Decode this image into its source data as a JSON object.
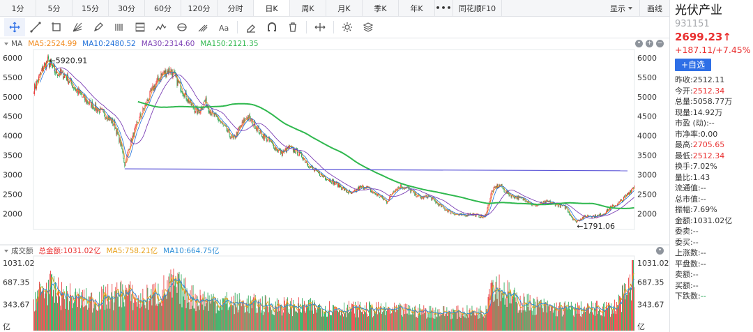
{
  "period_tabs": [
    {
      "label": "1分",
      "active": false
    },
    {
      "label": "5分",
      "active": false
    },
    {
      "label": "15分",
      "active": false
    },
    {
      "label": "30分",
      "active": false
    },
    {
      "label": "60分",
      "active": false
    },
    {
      "label": "120分",
      "active": false
    },
    {
      "label": "分时",
      "active": false
    },
    {
      "label": "日K",
      "active": true
    },
    {
      "label": "周K",
      "active": false
    },
    {
      "label": "月K",
      "active": false
    },
    {
      "label": "季K",
      "active": false
    },
    {
      "label": "年K",
      "active": false
    }
  ],
  "more_label": "•••",
  "f10_label": "同花顺F10",
  "display_label": "显示",
  "draw_label": "画线",
  "tools": [
    "crosshair-icon",
    "line-segment-icon",
    "rectangle-icon",
    "fan-icon",
    "pen-icon",
    "bars-icon",
    "channel-icon",
    "wave-icon",
    "cycle-icon",
    "fork-icon",
    "text-icon",
    "eraser-icon",
    "magnet-icon",
    "trash-icon",
    "arrows-icon",
    "settings-icon",
    "layers-icon"
  ],
  "colors": {
    "up": "#e93030",
    "down": "#1aa14b",
    "ma5": "#f28b1e",
    "ma10": "#1e6fd9",
    "ma30": "#7b3fb5",
    "ma150": "#2fb84e",
    "hline": "#5b55d8",
    "vol_ma5": "#e7a11b",
    "vol_ma10": "#2e8fd8"
  },
  "main_legend": {
    "tag": "MA",
    "ma5": "MA5:2524.99",
    "ma10": "MA10:2480.52",
    "ma30": "MA30:2314.60",
    "ma150": "MA150:2121.35"
  },
  "vol_legend": {
    "tag": "成交额",
    "total": "总金额:1031.02亿",
    "ma5": "MA5:758.21亿",
    "ma10": "MA10:664.75亿"
  },
  "chart_data": [
    {
      "type": "line",
      "ylim": [
        1700,
        6000
      ],
      "yticks": [
        2000,
        2500,
        3000,
        3500,
        4000,
        4500,
        5000,
        5500,
        6000
      ],
      "price_path": [
        [
          0,
          5200
        ],
        [
          8,
          5500
        ],
        [
          14,
          5780
        ],
        [
          20,
          5920
        ],
        [
          30,
          5650
        ],
        [
          45,
          5550
        ],
        [
          60,
          5200
        ],
        [
          75,
          4900
        ],
        [
          90,
          4700
        ],
        [
          105,
          4500
        ],
        [
          115,
          4300
        ],
        [
          125,
          3750
        ],
        [
          130,
          3250
        ],
        [
          138,
          3800
        ],
        [
          150,
          4400
        ],
        [
          160,
          4800
        ],
        [
          170,
          5200
        ],
        [
          182,
          5550
        ],
        [
          195,
          5700
        ],
        [
          205,
          5400
        ],
        [
          215,
          5100
        ],
        [
          225,
          4800
        ],
        [
          235,
          4600
        ],
        [
          245,
          4900
        ],
        [
          255,
          4550
        ],
        [
          265,
          4400
        ],
        [
          275,
          4150
        ],
        [
          285,
          3900
        ],
        [
          295,
          4200
        ],
        [
          305,
          4500
        ],
        [
          315,
          4300
        ],
        [
          325,
          4050
        ],
        [
          335,
          3900
        ],
        [
          345,
          3700
        ],
        [
          355,
          3550
        ],
        [
          365,
          3700
        ],
        [
          375,
          3600
        ],
        [
          385,
          3450
        ],
        [
          395,
          3200
        ],
        [
          405,
          3050
        ],
        [
          415,
          2950
        ],
        [
          425,
          2850
        ],
        [
          435,
          2750
        ],
        [
          445,
          2600
        ],
        [
          455,
          2500
        ],
        [
          465,
          2650
        ],
        [
          475,
          2700
        ],
        [
          485,
          2550
        ],
        [
          495,
          2450
        ],
        [
          505,
          2300
        ],
        [
          515,
          2600
        ],
        [
          525,
          2700
        ],
        [
          535,
          2650
        ],
        [
          545,
          2500
        ],
        [
          555,
          2400
        ],
        [
          565,
          2450
        ],
        [
          575,
          2300
        ],
        [
          585,
          2150
        ],
        [
          595,
          2050
        ],
        [
          605,
          1980
        ],
        [
          615,
          1950
        ],
        [
          625,
          2000
        ],
        [
          635,
          1950
        ],
        [
          645,
          1900
        ],
        [
          650,
          2200
        ],
        [
          655,
          2550
        ],
        [
          662,
          2700
        ],
        [
          668,
          2720
        ],
        [
          675,
          2550
        ],
        [
          685,
          2450
        ],
        [
          695,
          2400
        ],
        [
          705,
          2350
        ],
        [
          715,
          2200
        ],
        [
          725,
          2250
        ],
        [
          735,
          2300
        ],
        [
          745,
          2250
        ],
        [
          755,
          2200
        ],
        [
          762,
          2150
        ],
        [
          768,
          1950
        ],
        [
          775,
          1791
        ],
        [
          785,
          1900
        ],
        [
          795,
          1950
        ],
        [
          805,
          1930
        ],
        [
          815,
          2000
        ],
        [
          825,
          2150
        ],
        [
          835,
          2250
        ],
        [
          845,
          2400
        ],
        [
          852,
          2550
        ],
        [
          858,
          2699
        ]
      ],
      "n_bars": 860,
      "hline_value": 3150,
      "hline_end_value": 3100,
      "annotations": [
        {
          "bar": 20,
          "value": 5920.91,
          "label": "←5920.91"
        },
        {
          "bar": 775,
          "value": 1791.06,
          "label": "←1791.06"
        }
      ]
    },
    {
      "type": "bar",
      "ylim": [
        0,
        1031.02
      ],
      "yticks": [
        {
          "label": "1031.02",
          "value": 1031.02
        },
        {
          "label": "687.35",
          "value": 687.35
        },
        {
          "label": "343.67",
          "value": 343.67
        },
        {
          "label": "亿",
          "value": 0
        }
      ],
      "volume_profile": [
        [
          0,
          500
        ],
        [
          20,
          700
        ],
        [
          40,
          550
        ],
        [
          80,
          450
        ],
        [
          120,
          550
        ],
        [
          130,
          620
        ],
        [
          150,
          450
        ],
        [
          180,
          600
        ],
        [
          200,
          720
        ],
        [
          230,
          500
        ],
        [
          280,
          420
        ],
        [
          330,
          380
        ],
        [
          380,
          350
        ],
        [
          430,
          320
        ],
        [
          480,
          300
        ],
        [
          530,
          280
        ],
        [
          600,
          250
        ],
        [
          645,
          260
        ],
        [
          655,
          800
        ],
        [
          665,
          700
        ],
        [
          690,
          450
        ],
        [
          740,
          320
        ],
        [
          790,
          300
        ],
        [
          830,
          330
        ],
        [
          850,
          600
        ],
        [
          858,
          1031
        ]
      ]
    }
  ],
  "quote": {
    "name": "光伏产业",
    "code": "931151",
    "price": "2699.23↑",
    "change": "+187.11/+7.45%",
    "add_label": "+自选",
    "rows": [
      {
        "label": "昨收:",
        "value": "2512.11",
        "tone": ""
      },
      {
        "label": "今开:",
        "value": "2512.34",
        "tone": "red"
      },
      {
        "label": "总量:",
        "value": "5058.77万",
        "tone": ""
      },
      {
        "label": "现量:",
        "value": "14.92万",
        "tone": ""
      },
      {
        "label": "市盈 (动):",
        "value": "--",
        "tone": ""
      },
      {
        "label": "市净率:",
        "value": "0.00",
        "tone": ""
      },
      {
        "label": "最高:",
        "value": "2705.65",
        "tone": "red"
      },
      {
        "label": "最低:",
        "value": "2512.34",
        "tone": "red"
      },
      {
        "label": "换手:",
        "value": "7.02%",
        "tone": ""
      },
      {
        "label": "量比:",
        "value": "1.43",
        "tone": ""
      },
      {
        "label": "流通值:",
        "value": "--",
        "tone": ""
      },
      {
        "label": "总市值:",
        "value": "--",
        "tone": ""
      },
      {
        "label": "振幅:",
        "value": "7.69%",
        "tone": ""
      },
      {
        "label": "金额:",
        "value": "1031.02亿",
        "tone": ""
      },
      {
        "label": "委卖:",
        "value": "--",
        "tone": ""
      },
      {
        "label": "委买:",
        "value": "--",
        "tone": ""
      },
      {
        "label": "上涨数:",
        "value": "--",
        "tone": ""
      },
      {
        "label": "平盘数:",
        "value": "--",
        "tone": ""
      },
      {
        "label": "卖额:",
        "value": "--",
        "tone": ""
      },
      {
        "label": "买额:",
        "value": "--",
        "tone": ""
      },
      {
        "label": "下跌数:",
        "value": "--",
        "tone": "green"
      }
    ]
  }
}
